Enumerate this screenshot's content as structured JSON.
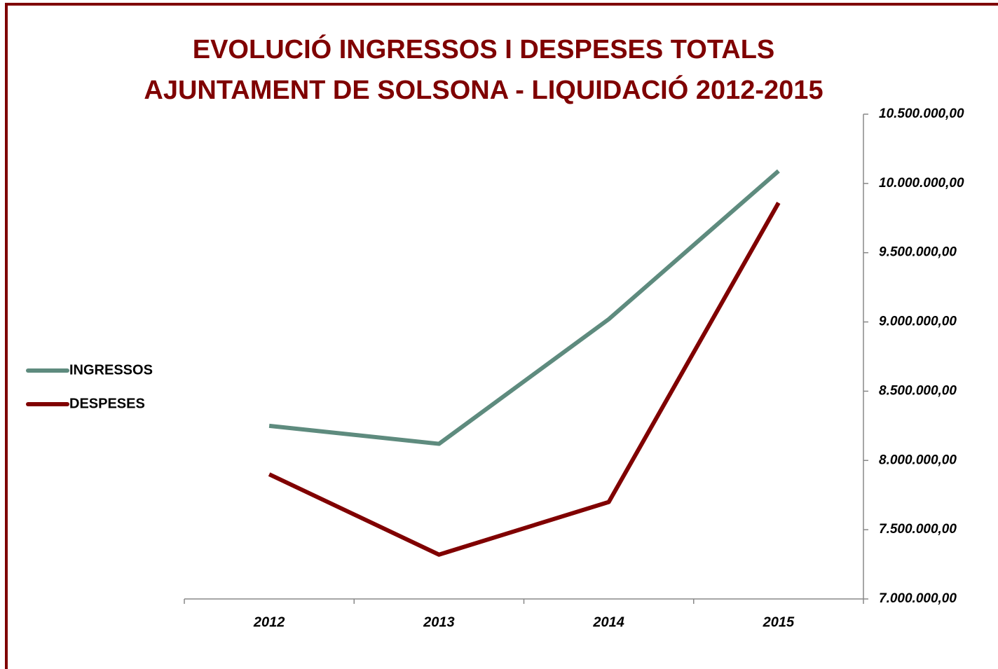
{
  "chart_data": {
    "type": "line",
    "title": [
      "EVOLUCIÓ INGRESSOS I DESPESES TOTALS",
      "AJUNTAMENT DE SOLSONA - LIQUIDACIÓ 2012-2015"
    ],
    "categories": [
      "2012",
      "2013",
      "2014",
      "2015"
    ],
    "series": [
      {
        "name": "INGRESSOS",
        "color": "#5e8b7e",
        "values": [
          8250000,
          8120000,
          9020000,
          10090000
        ]
      },
      {
        "name": "DESPESES",
        "color": "#800000",
        "values": [
          7900000,
          7320000,
          7700000,
          9860000
        ]
      }
    ],
    "ylim": [
      7000000,
      10500000
    ],
    "yticks": [
      {
        "value": 7000000,
        "label": "7.000.000,00"
      },
      {
        "value": 7500000,
        "label": "7.500.000,00"
      },
      {
        "value": 8000000,
        "label": "8.000.000,00"
      },
      {
        "value": 8500000,
        "label": "8.500.000,00"
      },
      {
        "value": 9000000,
        "label": "9.000.000,00"
      },
      {
        "value": 9500000,
        "label": "9.500.000,00"
      },
      {
        "value": 10000000,
        "label": "10.000.000,00"
      },
      {
        "value": 10500000,
        "label": "10.500.000,00"
      }
    ],
    "y_axis_side": "right",
    "legend": "left"
  }
}
